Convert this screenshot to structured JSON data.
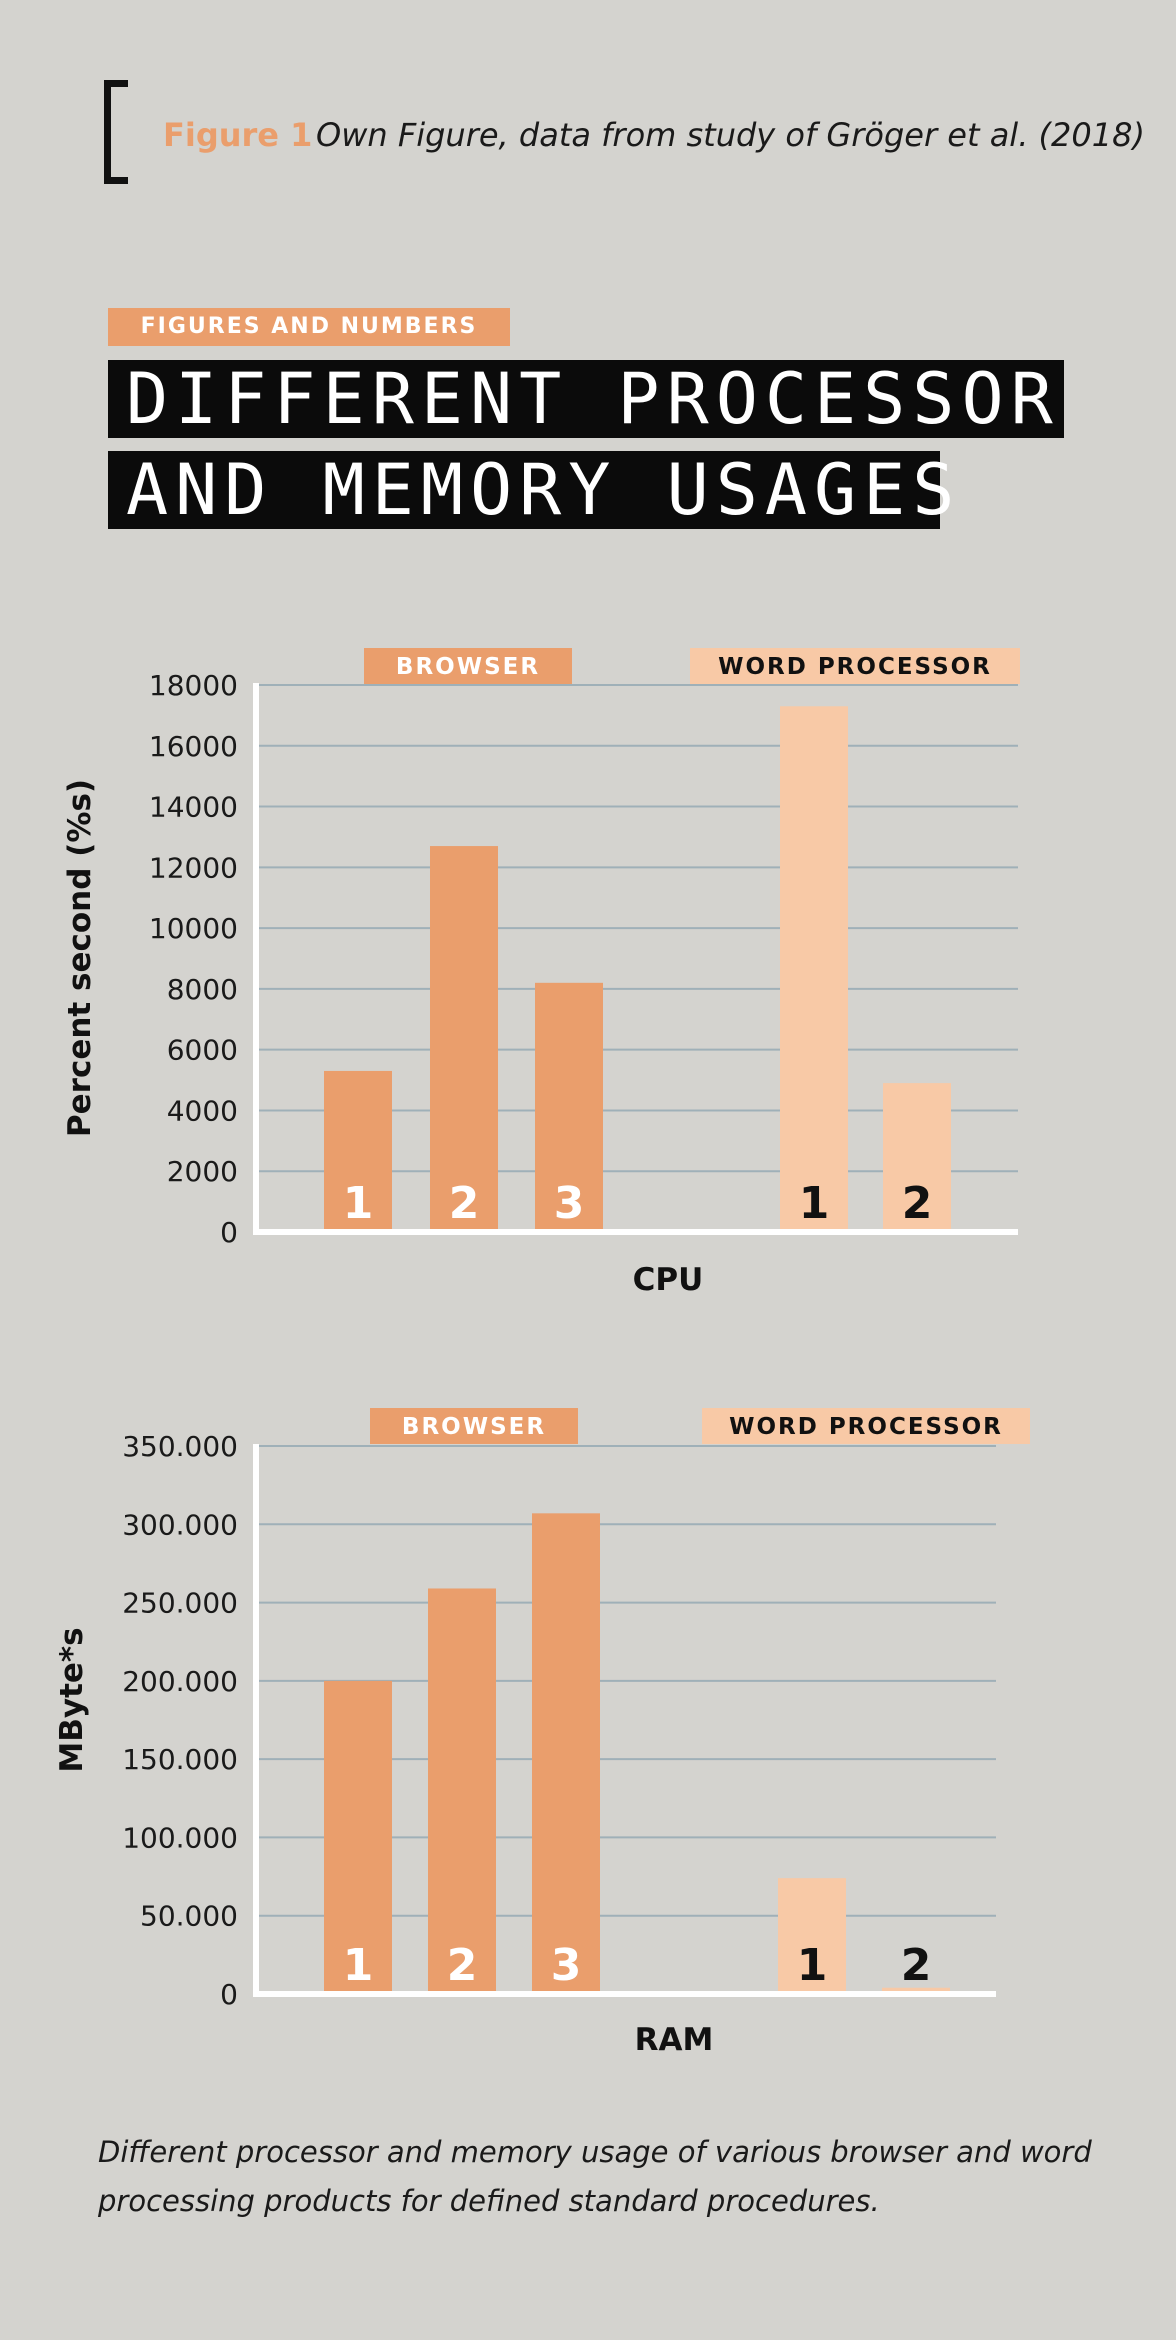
{
  "figure": {
    "label": "Figure 1",
    "source": "Own Figure, data from study of Gröger et al. (2018)"
  },
  "tag": "FIGURES AND NUMBERS",
  "title": {
    "line1": "DIFFERENT PROCESSOR",
    "line2": "AND MEMORY USAGES"
  },
  "caption": "Different processor and memory usage of various browser and word processing products for defined standard procedures.",
  "colors": {
    "browser": "#ea9e6c",
    "word_processor": "#f8c9a6",
    "gridline": "#9fb0b8",
    "axis": "#ffffff",
    "background": "#d4d3cf"
  },
  "chart_data": [
    {
      "type": "bar",
      "xlabel": "CPU",
      "ylabel": "Percent second (%s)",
      "ylim": [
        0,
        18000
      ],
      "ticks": [
        "0",
        "2000",
        "4000",
        "6000",
        "8000",
        "10000",
        "12000",
        "14000",
        "16000",
        "18000"
      ],
      "grid": true,
      "groups": [
        {
          "name": "BROWSER",
          "categories": [
            "1",
            "2",
            "3"
          ],
          "values": [
            5300,
            12700,
            8200
          ]
        },
        {
          "name": "WORD PROCESSOR",
          "categories": [
            "1",
            "2"
          ],
          "values": [
            17300,
            4900
          ]
        }
      ]
    },
    {
      "type": "bar",
      "xlabel": "RAM",
      "ylabel": "MByte*s",
      "ylim": [
        0,
        350000
      ],
      "ticks": [
        "0",
        "50.000",
        "100.000",
        "150.000",
        "200.000",
        "250.000",
        "300.000",
        "350.000"
      ],
      "grid": true,
      "groups": [
        {
          "name": "BROWSER",
          "categories": [
            "1",
            "2",
            "3"
          ],
          "values": [
            200000,
            259000,
            307000
          ]
        },
        {
          "name": "WORD PROCESSOR",
          "categories": [
            "1",
            "2"
          ],
          "values": [
            74000,
            4000
          ]
        }
      ]
    }
  ]
}
